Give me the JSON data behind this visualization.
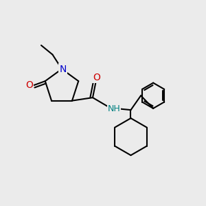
{
  "background_color": "#ebebeb",
  "bond_color": "#000000",
  "N_color": "#0000cc",
  "O_color": "#cc0000",
  "NH_color": "#008080",
  "line_width": 1.5,
  "figsize": [
    3.0,
    3.0
  ],
  "dpi": 100,
  "xlim": [
    0,
    10
  ],
  "ylim": [
    0,
    10
  ]
}
